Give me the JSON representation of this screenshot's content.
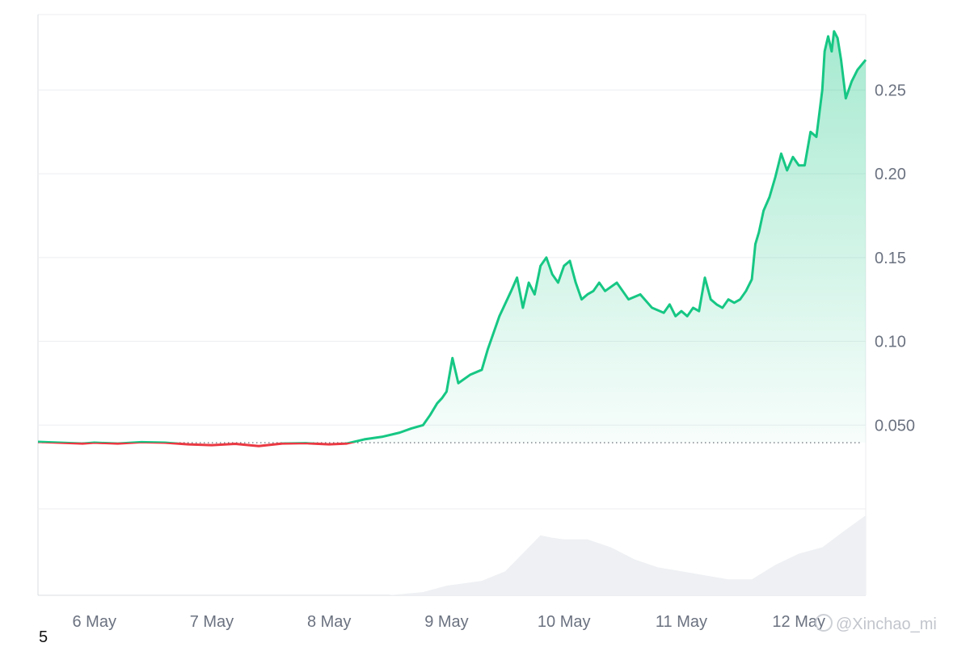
{
  "chart_data": {
    "type": "area",
    "title": "",
    "xlabel": "",
    "ylabel": "",
    "x_tick_labels": [
      "6 May",
      "7 May",
      "8 May",
      "9 May",
      "10 May",
      "11 May",
      "12 May"
    ],
    "y_tick_labels": [
      "0.050",
      "0.10",
      "0.15",
      "0.20",
      "0.25"
    ],
    "y_tick_values": [
      0.05,
      0.1,
      0.15,
      0.2,
      0.25
    ],
    "ylim": [
      0.0,
      0.295
    ],
    "xlim": [
      -0.48,
      6.57
    ],
    "baseline": 0.0395,
    "grid": true,
    "colors": {
      "up": "#16c784",
      "down": "#ea3943",
      "volume": "#eef0f3",
      "grid": "#eceef1",
      "axis": "#d8dce1"
    },
    "series": [
      {
        "x": [
          -0.48,
          -0.3,
          -0.1,
          0.0,
          0.2,
          0.4,
          0.6,
          0.8,
          1.0,
          1.2,
          1.4,
          1.6,
          1.8,
          2.0,
          2.15,
          2.3,
          2.45,
          2.6,
          2.7,
          2.8,
          2.86,
          2.92,
          2.96,
          3.0,
          3.05,
          3.1,
          3.2,
          3.3,
          3.35,
          3.45,
          3.55,
          3.6,
          3.65,
          3.7,
          3.75,
          3.8,
          3.85,
          3.9,
          3.95,
          4.0,
          4.05,
          4.1,
          4.15,
          4.2,
          4.25,
          4.3,
          4.35,
          4.45,
          4.55,
          4.65,
          4.75,
          4.85,
          4.9,
          4.95,
          5.0,
          5.05,
          5.1,
          5.15,
          5.2,
          5.25,
          5.3,
          5.35,
          5.4,
          5.45,
          5.5,
          5.55,
          5.6,
          5.63,
          5.66,
          5.7,
          5.75,
          5.8,
          5.85,
          5.9,
          5.95,
          6.0,
          6.05,
          6.1,
          6.15,
          6.2,
          6.22,
          6.25,
          6.28,
          6.3,
          6.33,
          6.36,
          6.4,
          6.45,
          6.5,
          6.57
        ],
        "y": [
          0.04,
          0.0395,
          0.039,
          0.0395,
          0.039,
          0.0398,
          0.0395,
          0.0385,
          0.038,
          0.0388,
          0.0375,
          0.039,
          0.0392,
          0.0385,
          0.039,
          0.0415,
          0.043,
          0.0455,
          0.048,
          0.05,
          0.056,
          0.063,
          0.066,
          0.07,
          0.09,
          0.075,
          0.08,
          0.083,
          0.095,
          0.115,
          0.13,
          0.138,
          0.12,
          0.135,
          0.128,
          0.145,
          0.15,
          0.14,
          0.135,
          0.145,
          0.148,
          0.135,
          0.125,
          0.128,
          0.13,
          0.135,
          0.13,
          0.135,
          0.125,
          0.128,
          0.12,
          0.117,
          0.122,
          0.115,
          0.118,
          0.115,
          0.12,
          0.118,
          0.138,
          0.125,
          0.122,
          0.12,
          0.125,
          0.123,
          0.125,
          0.13,
          0.137,
          0.158,
          0.165,
          0.178,
          0.186,
          0.198,
          0.212,
          0.202,
          0.21,
          0.205,
          0.205,
          0.225,
          0.222,
          0.25,
          0.273,
          0.282,
          0.273,
          0.285,
          0.281,
          0.268,
          0.245,
          0.255,
          0.262,
          0.268
        ]
      }
    ],
    "volume": {
      "x": [
        -0.48,
        2.0,
        2.5,
        2.8,
        3.0,
        3.3,
        3.5,
        3.7,
        3.8,
        3.9,
        4.0,
        4.2,
        4.4,
        4.6,
        4.8,
        5.0,
        5.2,
        5.4,
        5.6,
        5.8,
        6.0,
        6.2,
        6.4,
        6.57
      ],
      "v": [
        0,
        0,
        0,
        0.04,
        0.12,
        0.18,
        0.3,
        0.6,
        0.75,
        0.72,
        0.7,
        0.7,
        0.6,
        0.45,
        0.35,
        0.3,
        0.25,
        0.2,
        0.2,
        0.38,
        0.52,
        0.6,
        0.82,
        1.0
      ]
    }
  },
  "footer": {
    "corner_note": "5",
    "watermark": "@Xinchao_mi"
  }
}
